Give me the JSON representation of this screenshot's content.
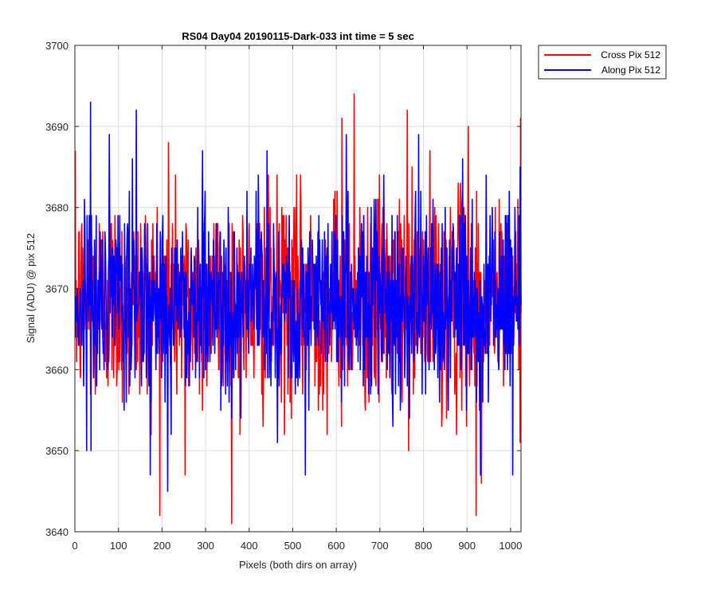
{
  "chart_data": {
    "type": "line",
    "title": "RS04 Day04 20190115-Dark-033 int time = 5 sec",
    "xlabel": "Pixels (both dirs on array)",
    "ylabel": "Signal (ADU) @ pix 512",
    "xlim": [
      0,
      1024
    ],
    "ylim": [
      3640,
      3700
    ],
    "xticks": [
      0,
      100,
      200,
      300,
      400,
      500,
      600,
      700,
      800,
      900,
      1000
    ],
    "yticks": [
      3640,
      3650,
      3660,
      3670,
      3680,
      3690,
      3700
    ],
    "grid": true,
    "legend_position": "outside-top-right",
    "series": [
      {
        "name": "Cross Pix 512",
        "color": "#ff0000",
        "num_points": 1024,
        "mean": 3668.5,
        "std": 6.5,
        "notable_points": [
          [
            214,
            3688
          ],
          [
            252,
            3647
          ],
          [
            612,
            3691
          ],
          [
            640,
            3694
          ],
          [
            762,
            3692
          ],
          [
            902,
            3690
          ],
          [
            920,
            3642
          ],
          [
            932,
            3646
          ],
          [
            1022,
            3691
          ]
        ]
      },
      {
        "name": "Along Pix 512",
        "color": "#0000ff",
        "num_points": 1024,
        "mean": 3668.5,
        "std": 6.0,
        "notable_points": [
          [
            35,
            3693
          ],
          [
            140,
            3692
          ],
          [
            212,
            3645
          ],
          [
            292,
            3687
          ],
          [
            440,
            3687
          ],
          [
            528,
            3647
          ],
          [
            622,
            3689
          ],
          [
            788,
            3689
          ],
          [
            930,
            3647
          ],
          [
            1004,
            3647
          ]
        ]
      }
    ]
  }
}
